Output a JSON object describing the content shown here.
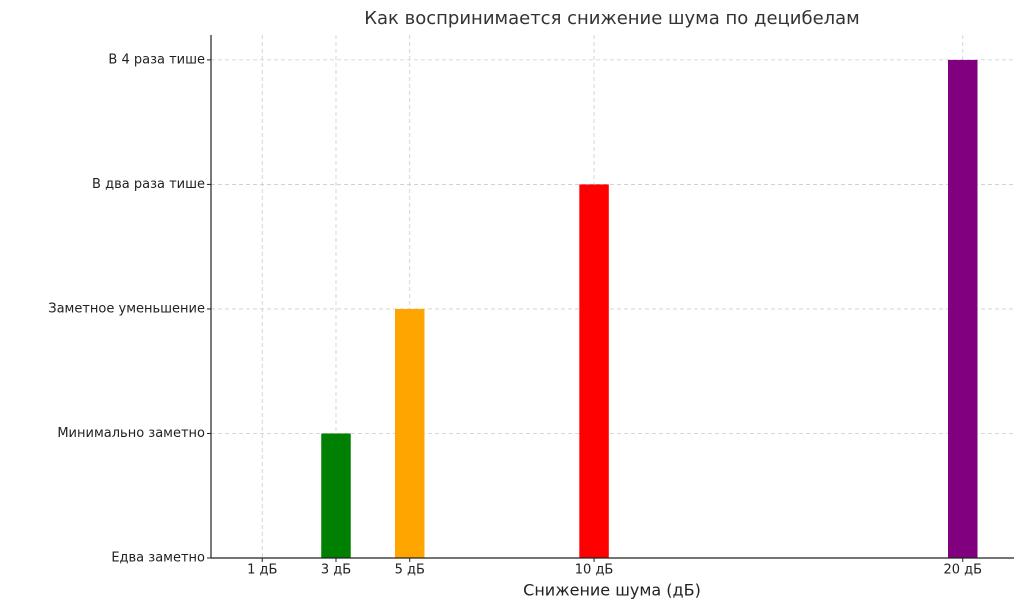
{
  "chart_data": {
    "type": "bar",
    "title": "Как воспринимается снижение шума по децибелам",
    "x_label": "Снижение шума (дБ)",
    "x": [
      1,
      3,
      5,
      10,
      20
    ],
    "values": [
      0,
      1,
      2,
      3,
      4
    ],
    "colors": [
      "#1f77b4",
      "#008000",
      "#ffa500",
      "#ff0000",
      "#800080"
    ],
    "xlim": [
      -0.39,
      21.39
    ],
    "xticks": [
      {
        "value": 1,
        "label": "1 дБ"
      },
      {
        "value": 3,
        "label": "3 дБ"
      },
      {
        "value": 5,
        "label": "5 дБ"
      },
      {
        "value": 10,
        "label": "10 дБ"
      },
      {
        "value": 20,
        "label": "20 дБ"
      }
    ],
    "ylim": [
      0,
      4.2
    ],
    "yticks": [
      {
        "value": 0,
        "label": "Едва заметно"
      },
      {
        "value": 1,
        "label": "Минимально заметно"
      },
      {
        "value": 2,
        "label": "Заметное уменьшение"
      },
      {
        "value": 3,
        "label": "В два раза тише"
      },
      {
        "value": 4,
        "label": "В 4 раза тише"
      }
    ],
    "grid": true
  }
}
